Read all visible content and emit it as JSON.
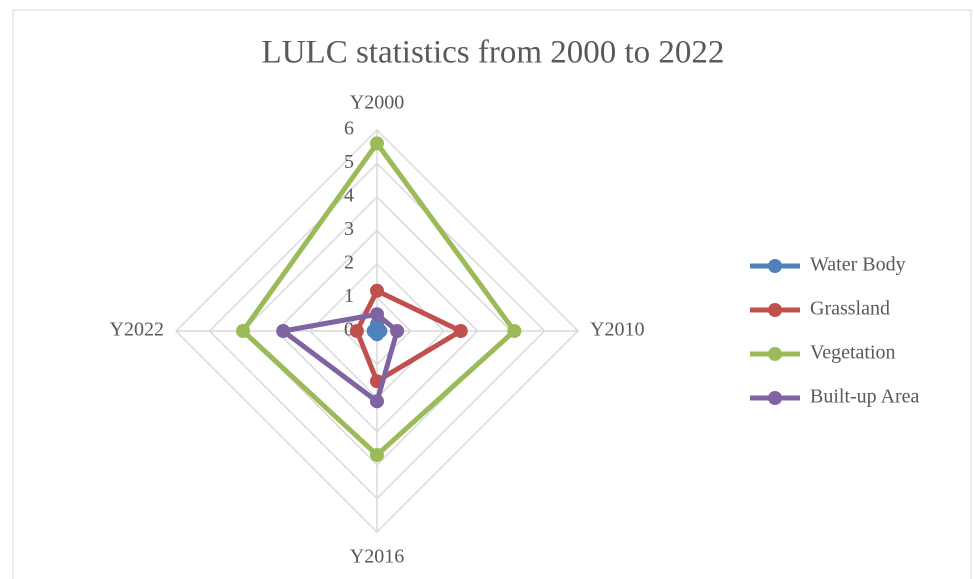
{
  "chart_data": {
    "type": "radar",
    "title": "LULC statistics from 2000 to 2022",
    "categories": [
      "Y2000",
      "Y2010",
      "Y2016",
      "Y2022"
    ],
    "series": [
      {
        "name": "Water Body",
        "color": "#4f81bd",
        "values": [
          0.2,
          0.1,
          0.1,
          0.1
        ]
      },
      {
        "name": "Grassland",
        "color": "#c0504d",
        "values": [
          1.2,
          2.5,
          1.5,
          0.6
        ]
      },
      {
        "name": "Vegetation",
        "color": "#9bbb59",
        "values": [
          5.6,
          4.1,
          3.7,
          4.0
        ]
      },
      {
        "name": "Built-up Area",
        "color": "#8064a2",
        "values": [
          0.5,
          0.6,
          2.1,
          2.8
        ]
      }
    ],
    "ylim": [
      0,
      6
    ],
    "yticks": [
      0,
      1,
      2,
      3,
      4,
      5,
      6
    ],
    "grid": true,
    "legend": "right"
  }
}
